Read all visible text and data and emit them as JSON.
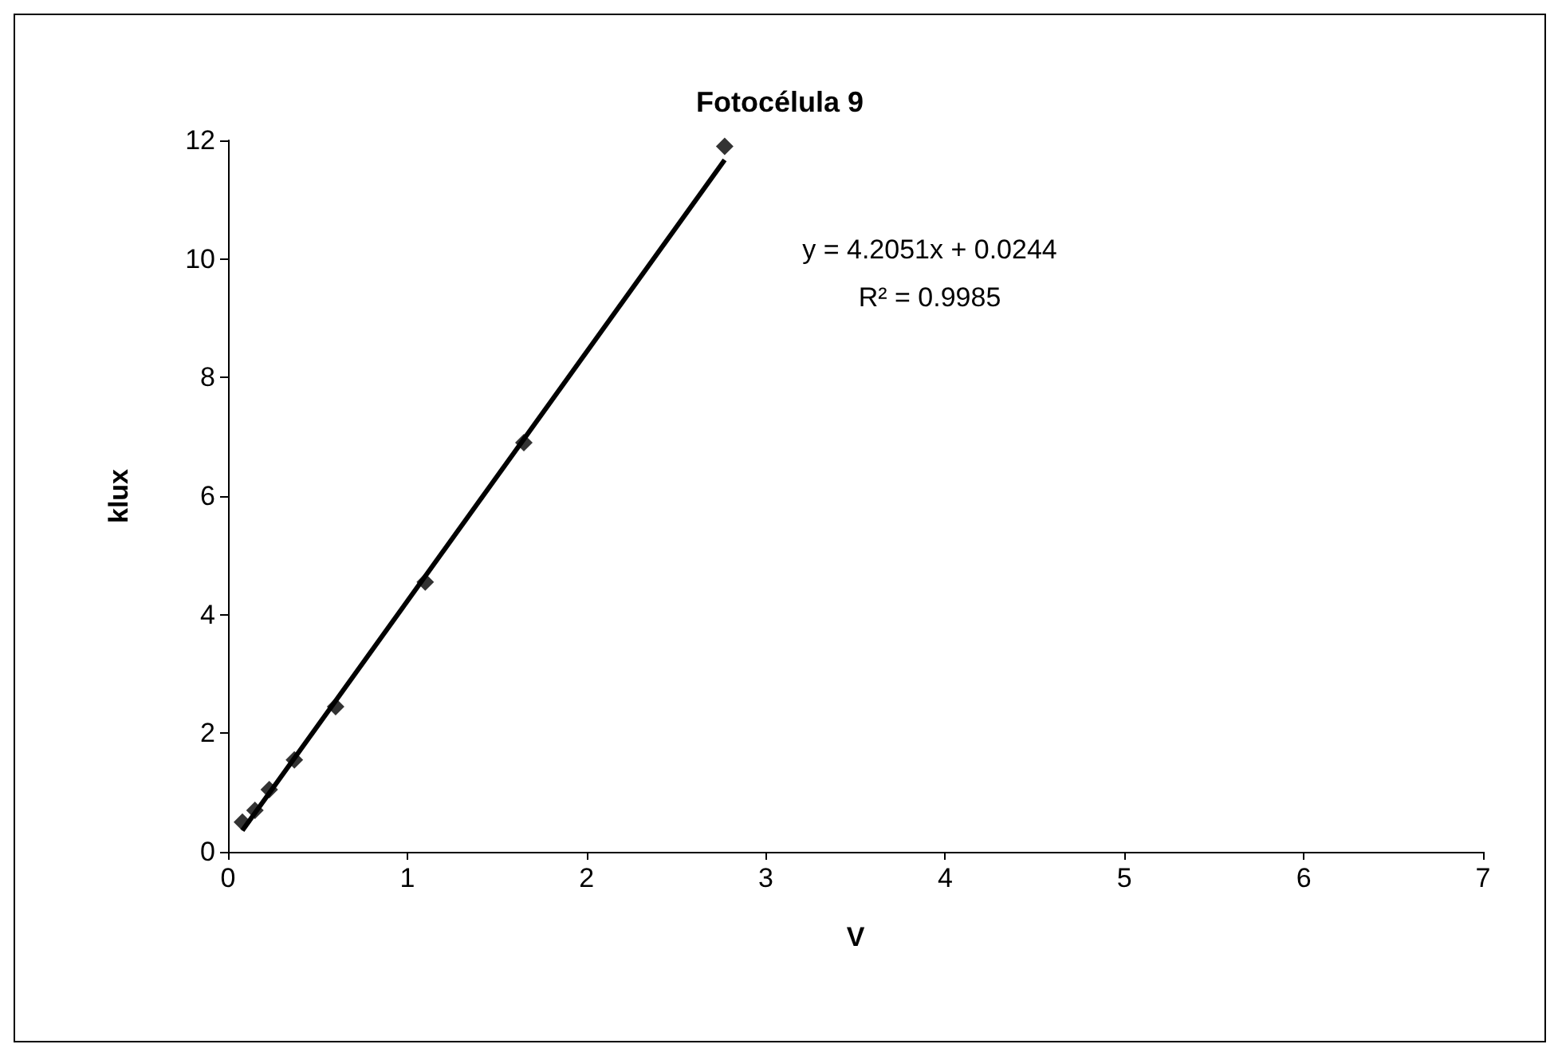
{
  "chart_data": {
    "type": "scatter",
    "title": "Fotocélula 9",
    "xlabel": "V",
    "ylabel": "klux",
    "x": [
      0.08,
      0.15,
      0.23,
      0.37,
      0.6,
      1.1,
      1.65,
      2.77
    ],
    "series": [
      {
        "color": "#000000",
        "marker": "diamond",
        "values": [
          0.5,
          0.7,
          1.05,
          1.55,
          2.45,
          4.55,
          6.9,
          11.9
        ]
      },
      {
        "type": "line",
        "color": "#000000",
        "marker": "none",
        "x": [
          0.08,
          2.77
        ],
        "values": [
          0.36,
          11.67
        ]
      }
    ],
    "annotations": [
      "y = 4.2051x + 0.0244",
      "R² = 0.9985"
    ],
    "xlim": [
      0,
      7
    ],
    "xticks": [
      0,
      1,
      2,
      3,
      4,
      5,
      6,
      7
    ],
    "ylim": [
      0,
      12
    ],
    "yticks": [
      0,
      2,
      4,
      6,
      8,
      10,
      12
    ],
    "grid": false
  }
}
